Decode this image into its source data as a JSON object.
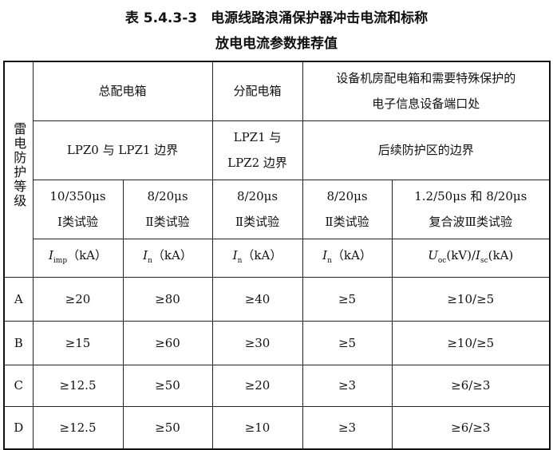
{
  "title": {
    "line1": "表 5.4.3-3　电源线路浪涌保护器冲击电流和标称",
    "line2": "放电电流参数推荐值"
  },
  "header": {
    "grade": "雷电防护等级",
    "main_box": "总配电箱",
    "sub_box": "分配电箱",
    "equipment": "设备机房配电箱和需要特殊保护的电子信息设备端口处",
    "zone1": "LPZ0 与 LPZ1 边界",
    "zone2": "LPZ1 与 LPZ2 边界",
    "zone3": "后续防护区的边界",
    "waves": [
      "10/350μs",
      "8/20μs",
      "8/20μs",
      "8/20μs",
      "1.2/50μs 和 8/20μs"
    ],
    "tests": [
      "Ⅰ类试验",
      "Ⅱ类试验",
      "Ⅱ类试验",
      "Ⅱ类试验",
      "复合波Ⅲ类试验"
    ],
    "units": {
      "imp": {
        "sym": "I",
        "sub": "imp",
        "unit": "（kA）"
      },
      "n": {
        "sym": "I",
        "sub": "n",
        "unit": "（kA）"
      },
      "uoc": {
        "sym": "U",
        "sub": "oc",
        "unit": "(kV)/",
        "sym2": "I",
        "sub2": "sc",
        "unit2": "(kA)"
      }
    }
  },
  "rows": [
    {
      "grade": "A",
      "values": [
        "≥20",
        "≥80",
        "≥40",
        "≥5",
        "≥10/≥5"
      ]
    },
    {
      "grade": "B",
      "values": [
        "≥15",
        "≥60",
        "≥30",
        "≥5",
        "≥10/≥5"
      ]
    },
    {
      "grade": "C",
      "values": [
        "≥12.5",
        "≥50",
        "≥20",
        "≥3",
        "≥6/≥3"
      ]
    },
    {
      "grade": "D",
      "values": [
        "≥12.5",
        "≥50",
        "≥10",
        "≥3",
        "≥6/≥3"
      ]
    }
  ]
}
